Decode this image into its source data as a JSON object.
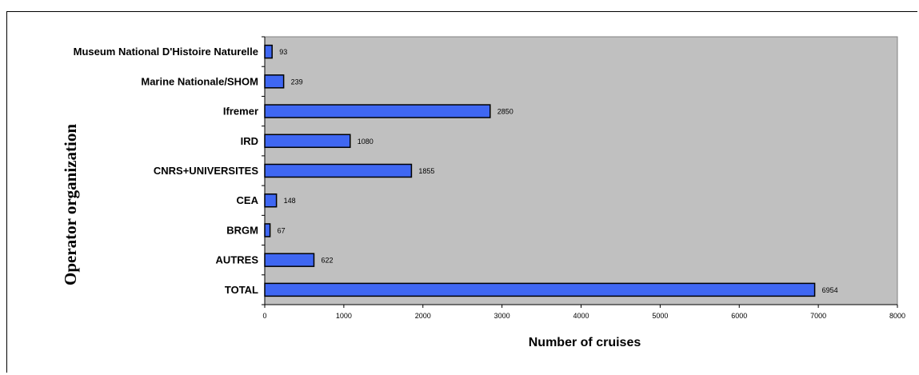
{
  "chart_data": {
    "type": "bar",
    "orientation": "horizontal",
    "categories": [
      "Museum National D'Histoire Naturelle",
      "Marine Nationale/SHOM",
      "Ifremer",
      "IRD",
      "CNRS+UNIVERSITES",
      "CEA",
      "BRGM",
      "AUTRES",
      "TOTAL"
    ],
    "values": [
      93,
      239,
      2850,
      1080,
      1855,
      148,
      67,
      622,
      6954
    ],
    "xlabel": "Number of cruises",
    "ylabel": "Operator organization",
    "xlim": [
      0,
      8000
    ],
    "xticks": [
      0,
      1000,
      2000,
      3000,
      4000,
      5000,
      6000,
      7000,
      8000
    ],
    "grid": false,
    "legend": "none",
    "colors": {
      "bar": "#3f67f2",
      "plot_background": "#c0c0c0"
    }
  }
}
